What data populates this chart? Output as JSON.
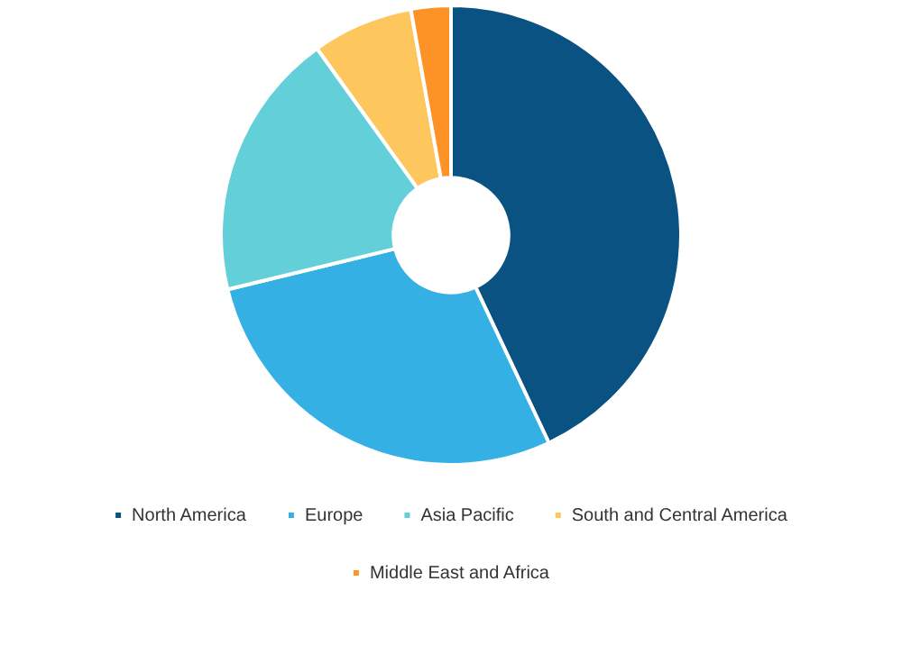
{
  "chart_data": {
    "type": "donut",
    "categories": [
      "North America",
      "Europe",
      "Asia Pacific",
      "South and Central America",
      "Middle East and Africa"
    ],
    "values": [
      43,
      28.2,
      18.9,
      7.1,
      2.8
    ],
    "colors": [
      "#0a5282",
      "#35b0e4",
      "#63cfd9",
      "#fec75e",
      "#fd9326"
    ],
    "legend": "bottom"
  }
}
